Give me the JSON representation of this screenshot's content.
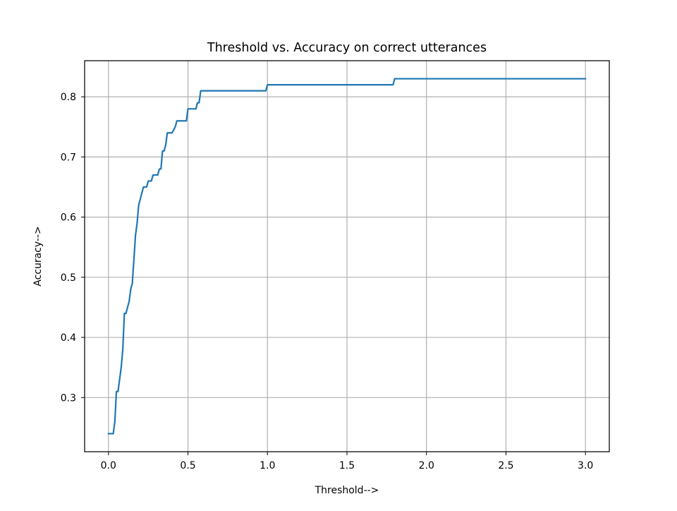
{
  "chart_data": {
    "type": "line",
    "title": "Threshold vs. Accuracy on correct utterances",
    "xlabel": "Threshold-->",
    "ylabel": "Accuracy-->",
    "xlim": [
      -0.15,
      3.15
    ],
    "ylim": [
      0.21,
      0.86
    ],
    "xticks": [
      0.0,
      0.5,
      1.0,
      1.5,
      2.0,
      2.5,
      3.0
    ],
    "xtick_labels": [
      "0.0",
      "0.5",
      "1.0",
      "1.5",
      "2.0",
      "2.5",
      "3.0"
    ],
    "yticks": [
      0.3,
      0.4,
      0.5,
      0.6,
      0.7,
      0.8
    ],
    "ytick_labels": [
      "0.3",
      "0.4",
      "0.5",
      "0.6",
      "0.7",
      "0.8"
    ],
    "grid": true,
    "line_color": "#1f77b4",
    "series": [
      {
        "x": [
          0.0,
          0.03,
          0.04,
          0.05,
          0.06,
          0.07,
          0.08,
          0.09,
          0.1,
          0.11,
          0.12,
          0.13,
          0.14,
          0.15,
          0.16,
          0.17,
          0.18,
          0.19,
          0.2,
          0.22,
          0.23,
          0.24,
          0.25,
          0.27,
          0.28,
          0.31,
          0.32,
          0.33,
          0.34,
          0.35,
          0.36,
          0.37,
          0.38,
          0.4,
          0.42,
          0.43,
          0.49,
          0.5,
          0.55,
          0.56,
          0.57,
          0.58,
          0.59,
          0.99,
          1.0,
          1.79,
          1.8,
          3.0
        ],
        "y": [
          0.24,
          0.24,
          0.26,
          0.31,
          0.31,
          0.33,
          0.35,
          0.38,
          0.44,
          0.44,
          0.45,
          0.46,
          0.48,
          0.49,
          0.53,
          0.57,
          0.59,
          0.62,
          0.63,
          0.65,
          0.65,
          0.65,
          0.66,
          0.66,
          0.67,
          0.67,
          0.68,
          0.68,
          0.71,
          0.71,
          0.72,
          0.74,
          0.74,
          0.74,
          0.75,
          0.76,
          0.76,
          0.78,
          0.78,
          0.79,
          0.79,
          0.81,
          0.81,
          0.81,
          0.82,
          0.82,
          0.83,
          0.83
        ]
      }
    ]
  }
}
